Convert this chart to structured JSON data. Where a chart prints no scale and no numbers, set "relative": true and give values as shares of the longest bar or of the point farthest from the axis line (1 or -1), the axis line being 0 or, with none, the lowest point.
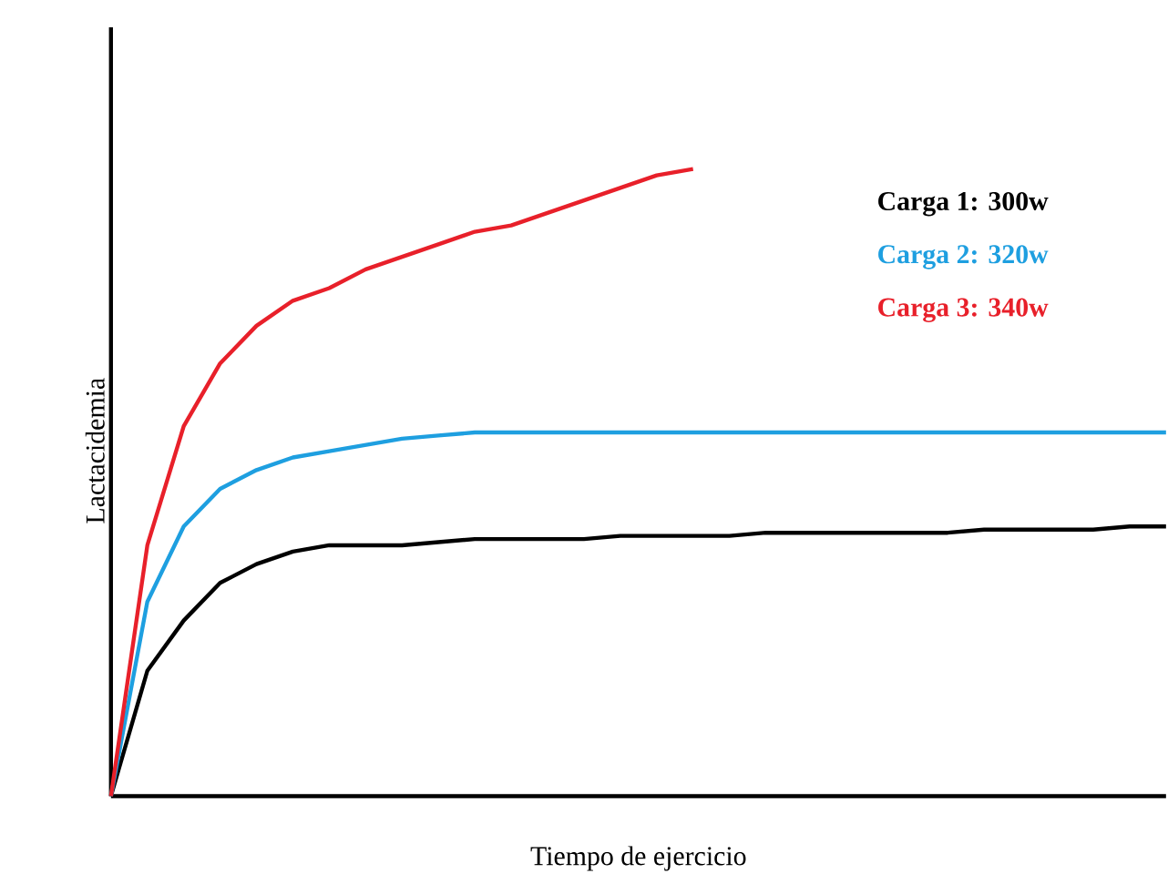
{
  "chart_data": {
    "type": "line",
    "relative": true,
    "xlabel": "Tiempo de ejercicio",
    "ylabel": "Lactacidemia",
    "legend": "top right",
    "marker": "none",
    "line_style": "solid",
    "categories": [
      null,
      null,
      null,
      null,
      null,
      null,
      null,
      null,
      null,
      null,
      null,
      null,
      null,
      null,
      null,
      null,
      null,
      null,
      null,
      null,
      null,
      null,
      null,
      null,
      null,
      null,
      null,
      null,
      null,
      null
    ],
    "series": [
      {
        "name": "Carga 1: 300w",
        "color": "#000000",
        "values": [
          0,
          0.2,
          0.28,
          0.34,
          0.37,
          0.39,
          0.4,
          0.4,
          0.4,
          0.405,
          0.41,
          0.41,
          0.41,
          0.41,
          0.415,
          0.415,
          0.415,
          0.415,
          0.42,
          0.42,
          0.42,
          0.42,
          0.42,
          0.42,
          0.425,
          0.425,
          0.425,
          0.425,
          0.43,
          0.43
        ]
      },
      {
        "name": "Carga 2: 320w",
        "color": "#1e9fe0",
        "values": [
          0,
          0.31,
          0.43,
          0.49,
          0.52,
          0.54,
          0.55,
          0.56,
          0.57,
          0.575,
          0.58,
          0.58,
          0.58,
          0.58,
          0.58,
          0.58,
          0.58,
          0.58,
          0.58,
          0.58,
          0.58,
          0.58,
          0.58,
          0.58,
          0.58,
          0.58,
          0.58,
          0.58,
          0.58,
          0.58
        ]
      },
      {
        "name": "Carga 3: 340w",
        "color": "#e8202a",
        "values": [
          0,
          0.4,
          0.59,
          0.69,
          0.75,
          0.79,
          0.81,
          0.84,
          0.86,
          0.88,
          0.9,
          0.91,
          0.93,
          0.95,
          0.97,
          0.99,
          1,
          null,
          null,
          null,
          null,
          null,
          null,
          null,
          null,
          null,
          null,
          null,
          null,
          null
        ]
      }
    ]
  }
}
